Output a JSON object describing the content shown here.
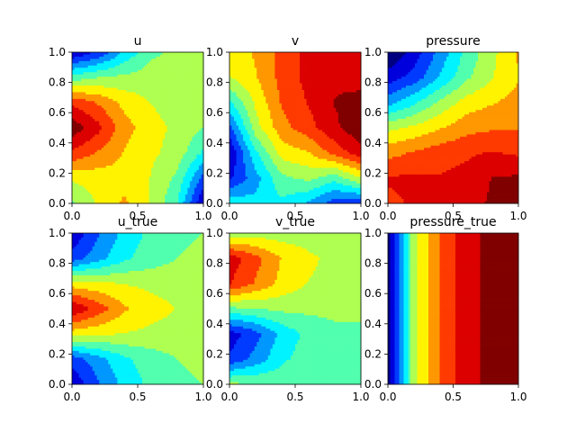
{
  "chart_data": [
    {
      "type": "heatmap",
      "title": "u",
      "xlim": [
        0,
        1
      ],
      "ylim": [
        0,
        1
      ],
      "xticks": [
        "0.0",
        "0.5",
        "1.0"
      ],
      "yticks": [
        "0.0",
        "0.2",
        "0.4",
        "0.6",
        "0.8",
        "1.0"
      ],
      "colormap": "jet",
      "grid": false,
      "z_grid_rows_bottom_to_top": [
        [
          0.48,
          0.6,
          0.68,
          0.58,
          0.42,
          0.08
        ],
        [
          0.6,
          0.62,
          0.64,
          0.58,
          0.48,
          0.22
        ],
        [
          0.82,
          0.74,
          0.66,
          0.6,
          0.55,
          0.4
        ],
        [
          0.97,
          0.86,
          0.7,
          0.62,
          0.56,
          0.5
        ],
        [
          0.82,
          0.74,
          0.64,
          0.58,
          0.54,
          0.52
        ],
        [
          0.45,
          0.5,
          0.52,
          0.54,
          0.54,
          0.54
        ],
        [
          0.08,
          0.18,
          0.35,
          0.48,
          0.52,
          0.55
        ]
      ]
    },
    {
      "type": "heatmap",
      "title": "v",
      "xlim": [
        0,
        1
      ],
      "ylim": [
        0,
        1
      ],
      "xticks": [
        "0.0",
        "0.5",
        "1.0"
      ],
      "yticks": [
        "0.0",
        "0.2",
        "0.4",
        "0.6",
        "0.8",
        "1.0"
      ],
      "colormap": "jet",
      "grid": false,
      "z_grid_rows_bottom_to_top": [
        [
          0.4,
          0.36,
          0.4,
          0.32,
          0.2,
          0.18
        ],
        [
          0.15,
          0.3,
          0.48,
          0.52,
          0.45,
          0.58
        ],
        [
          0.08,
          0.4,
          0.62,
          0.66,
          0.78,
          0.88
        ],
        [
          0.22,
          0.55,
          0.72,
          0.8,
          0.9,
          0.98
        ],
        [
          0.4,
          0.6,
          0.76,
          0.84,
          0.92,
          0.95
        ],
        [
          0.58,
          0.66,
          0.78,
          0.86,
          0.9,
          0.88
        ],
        [
          0.6,
          0.68,
          0.78,
          0.86,
          0.86,
          0.86
        ]
      ]
    },
    {
      "type": "heatmap",
      "title": "pressure",
      "xlim": [
        0,
        1
      ],
      "ylim": [
        0,
        1
      ],
      "xticks": [
        "0.0",
        "0.5",
        "1.0"
      ],
      "yticks": [
        "0.0",
        "0.2",
        "0.4",
        "0.6",
        "0.8",
        "1.0"
      ],
      "colormap": "jet",
      "grid": false,
      "z_grid_rows_bottom_to_top": [
        [
          0.82,
          0.84,
          0.86,
          0.88,
          0.93,
          0.98
        ],
        [
          0.84,
          0.85,
          0.84,
          0.86,
          0.92,
          0.93
        ],
        [
          0.72,
          0.76,
          0.8,
          0.82,
          0.84,
          0.82
        ],
        [
          0.56,
          0.6,
          0.66,
          0.72,
          0.74,
          0.74
        ],
        [
          0.3,
          0.4,
          0.52,
          0.62,
          0.66,
          0.7
        ],
        [
          0.12,
          0.2,
          0.34,
          0.48,
          0.58,
          0.66
        ],
        [
          0.0,
          0.12,
          0.28,
          0.44,
          0.56,
          0.68
        ]
      ]
    },
    {
      "type": "heatmap",
      "title": "u_true",
      "xlim": [
        0,
        1
      ],
      "ylim": [
        0,
        1
      ],
      "xticks": [
        "0.0",
        "0.5",
        "1.0"
      ],
      "yticks": [
        "0.0",
        "0.2",
        "0.4",
        "0.6",
        "0.8",
        "1.0"
      ],
      "colormap": "jet",
      "grid": false,
      "z_grid_rows_bottom_to_top": [
        [
          0.1,
          0.24,
          0.36,
          0.44,
          0.48,
          0.5
        ],
        [
          0.2,
          0.3,
          0.4,
          0.46,
          0.5,
          0.52
        ],
        [
          0.62,
          0.6,
          0.58,
          0.56,
          0.55,
          0.55
        ],
        [
          0.92,
          0.8,
          0.68,
          0.62,
          0.58,
          0.56
        ],
        [
          0.62,
          0.6,
          0.58,
          0.56,
          0.55,
          0.55
        ],
        [
          0.2,
          0.3,
          0.4,
          0.46,
          0.5,
          0.52
        ],
        [
          0.1,
          0.24,
          0.36,
          0.44,
          0.48,
          0.5
        ]
      ]
    },
    {
      "type": "heatmap",
      "title": "v_true",
      "xlim": [
        0,
        1
      ],
      "ylim": [
        0,
        1
      ],
      "xticks": [
        "0.0",
        "0.5",
        "1.0"
      ],
      "yticks": [
        "0.0",
        "0.2",
        "0.4",
        "0.6",
        "0.8",
        "1.0"
      ],
      "colormap": "jet",
      "grid": false,
      "z_grid_rows_bottom_to_top": [
        [
          0.52,
          0.5,
          0.48,
          0.48,
          0.48,
          0.48
        ],
        [
          0.18,
          0.28,
          0.4,
          0.46,
          0.48,
          0.48
        ],
        [
          0.12,
          0.22,
          0.36,
          0.44,
          0.48,
          0.48
        ],
        [
          0.48,
          0.5,
          0.52,
          0.52,
          0.52,
          0.52
        ],
        [
          0.84,
          0.74,
          0.64,
          0.58,
          0.56,
          0.54
        ],
        [
          0.88,
          0.78,
          0.66,
          0.6,
          0.56,
          0.54
        ],
        [
          0.52,
          0.54,
          0.54,
          0.54,
          0.54,
          0.54
        ]
      ]
    },
    {
      "type": "heatmap",
      "title": "pressure_true",
      "xlim": [
        0,
        1
      ],
      "ylim": [
        0,
        1
      ],
      "xticks": [
        "0.0",
        "0.5",
        "1.0"
      ],
      "yticks": [
        "0.0",
        "0.2",
        "0.4",
        "0.6",
        "0.8",
        "1.0"
      ],
      "colormap": "jet",
      "grid": false,
      "z_grid_rows_bottom_to_top": [
        [
          0.05,
          0.55,
          0.76,
          0.88,
          0.95,
          1.0
        ],
        [
          0.05,
          0.55,
          0.76,
          0.88,
          0.95,
          1.0
        ],
        [
          0.05,
          0.55,
          0.76,
          0.88,
          0.95,
          1.0
        ],
        [
          0.05,
          0.55,
          0.76,
          0.88,
          0.95,
          1.0
        ],
        [
          0.05,
          0.55,
          0.76,
          0.88,
          0.95,
          1.0
        ],
        [
          0.05,
          0.55,
          0.76,
          0.88,
          0.95,
          1.0
        ],
        [
          0.05,
          0.55,
          0.76,
          0.88,
          0.95,
          1.0
        ]
      ]
    }
  ]
}
